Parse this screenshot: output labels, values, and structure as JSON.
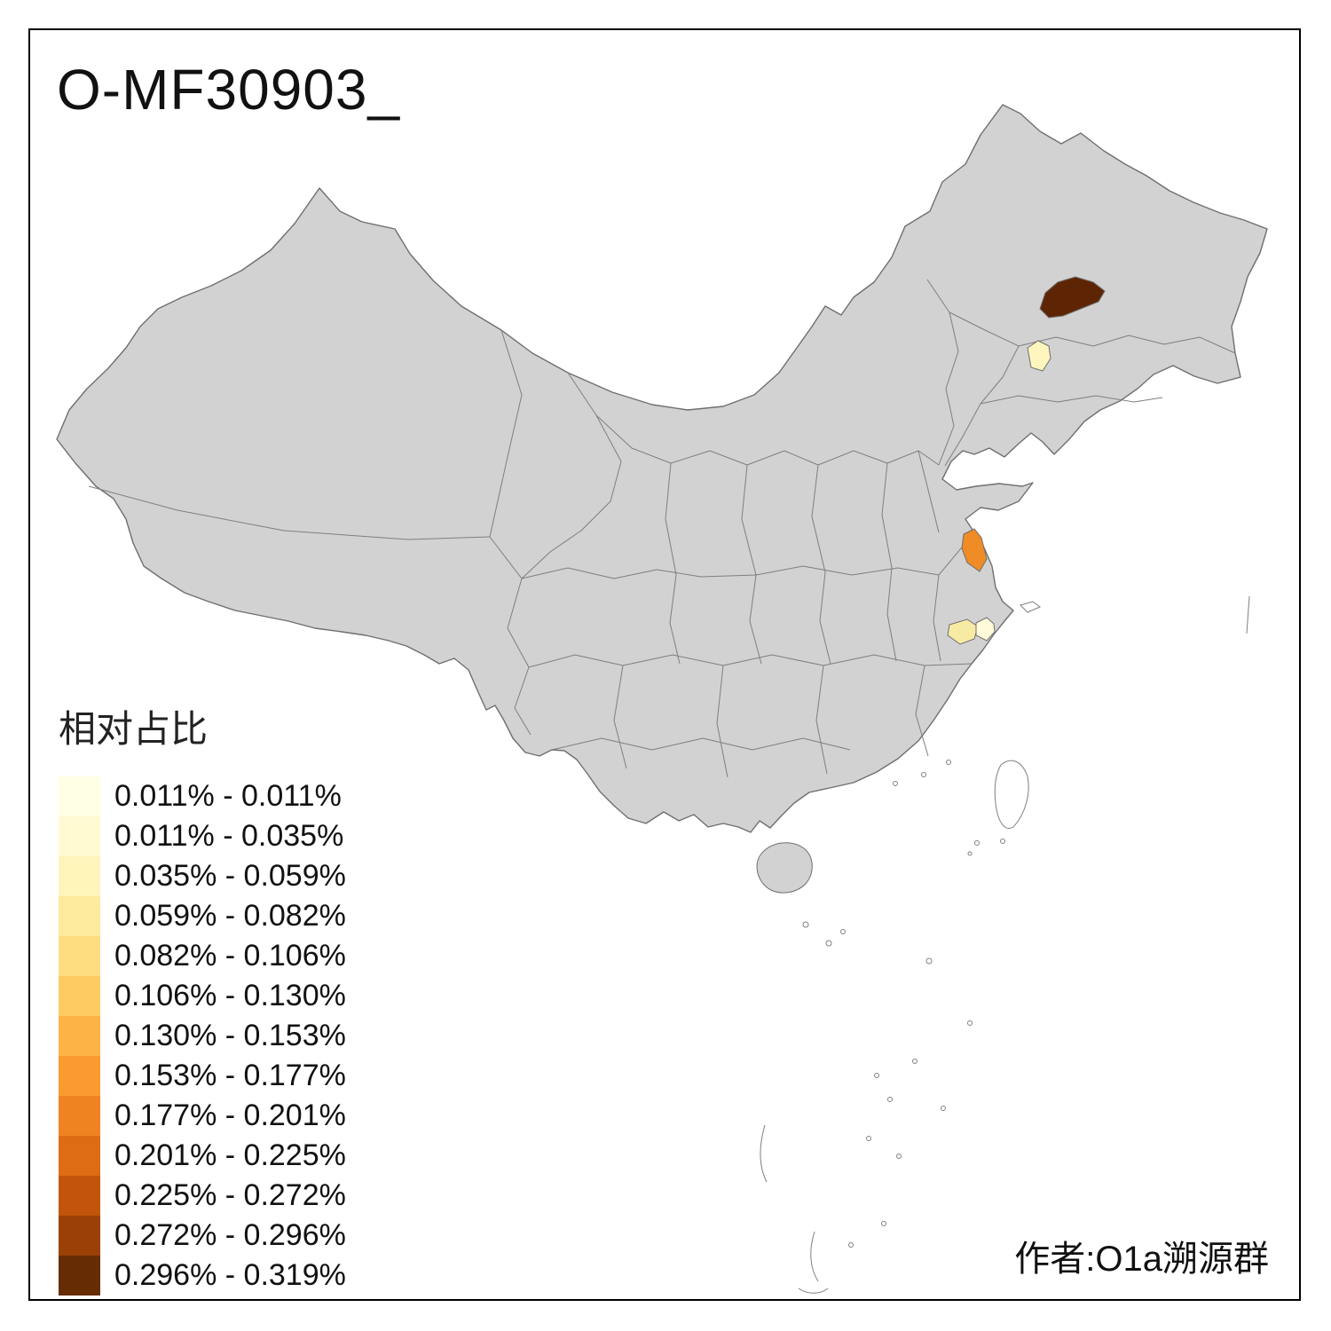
{
  "page": {
    "title": "O-MF30903_",
    "attribution": "作者:O1a溯源群",
    "background": "#ffffff",
    "frame_color": "#000000"
  },
  "legend": {
    "title": "相对占比",
    "items": [
      {
        "label": "0.011% - 0.011%",
        "color": "#FFFFE5"
      },
      {
        "label": "0.011% - 0.035%",
        "color": "#FFFAD2"
      },
      {
        "label": "0.035% - 0.059%",
        "color": "#FFF5BB"
      },
      {
        "label": "0.059% - 0.082%",
        "color": "#FEEA9D"
      },
      {
        "label": "0.082% - 0.106%",
        "color": "#FEDD80"
      },
      {
        "label": "0.106% - 0.130%",
        "color": "#FECB62"
      },
      {
        "label": "0.130% - 0.153%",
        "color": "#FEB445"
      },
      {
        "label": "0.153% - 0.177%",
        "color": "#FB9A30"
      },
      {
        "label": "0.177% - 0.201%",
        "color": "#F08321"
      },
      {
        "label": "0.201% - 0.225%",
        "color": "#DE6C14"
      },
      {
        "label": "0.225% - 0.272%",
        "color": "#C2550B"
      },
      {
        "label": "0.272% - 0.296%",
        "color": "#9B4107"
      },
      {
        "label": "0.296% - 0.319%",
        "color": "#662D05"
      }
    ]
  },
  "map": {
    "base_fill": "#D2D2D2",
    "border_color": "#7F7F7F",
    "sea_fill": "#FFFFFF",
    "regions": [
      {
        "name": "northeast-dark-region",
        "color": "#5E2505"
      },
      {
        "name": "northeast-pale-region",
        "color": "#FFF6BE"
      },
      {
        "name": "east-coast-orange-region",
        "color": "#F08C25"
      },
      {
        "name": "delta-pale-region-west",
        "color": "#F7EBA4"
      },
      {
        "name": "delta-pale-region-east",
        "color": "#FFFBDA"
      }
    ]
  }
}
